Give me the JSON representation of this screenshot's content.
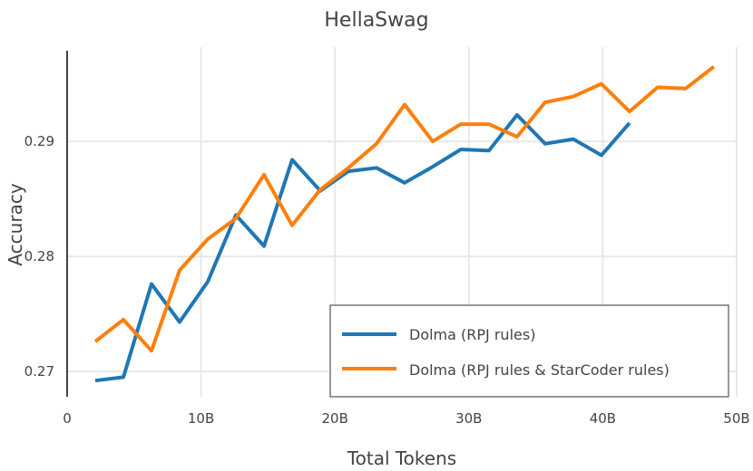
{
  "chart_data": {
    "type": "line",
    "title": "HellaSwag",
    "xlabel": "Total Tokens",
    "ylabel": "Accuracy",
    "xlim": [
      0,
      50
    ],
    "ylim": [
      0.2678,
      0.2982
    ],
    "x_ticks": [
      {
        "value": 0,
        "label": "0"
      },
      {
        "value": 10,
        "label": "10B"
      },
      {
        "value": 20,
        "label": "20B"
      },
      {
        "value": 30,
        "label": "30B"
      },
      {
        "value": 40,
        "label": "40B"
      },
      {
        "value": 50,
        "label": "50B"
      }
    ],
    "y_ticks": [
      {
        "value": 0.27,
        "label": "0.27"
      },
      {
        "value": 0.28,
        "label": "0.28"
      },
      {
        "value": 0.29,
        "label": "0.29"
      }
    ],
    "grid": true,
    "legend_position": "bottom-right",
    "series": [
      {
        "name": "Dolma (RPJ rules)",
        "color": "#1f77b4",
        "x": [
          2.1,
          4.2,
          6.3,
          8.4,
          10.5,
          12.6,
          14.7,
          16.8,
          18.9,
          21.0,
          23.1,
          25.2,
          27.3,
          29.4,
          31.5,
          33.6,
          35.7,
          37.8,
          39.9,
          42.0
        ],
        "y": [
          0.2692,
          0.2695,
          0.2776,
          0.2743,
          0.2778,
          0.2836,
          0.2809,
          0.2884,
          0.2857,
          0.2874,
          0.2877,
          0.2864,
          0.2878,
          0.2893,
          0.2892,
          0.2923,
          0.2898,
          0.2902,
          0.2888,
          0.2916
        ]
      },
      {
        "name": "Dolma (RPJ rules & StarCoder rules)",
        "color": "#ff7f0e",
        "x": [
          2.1,
          4.2,
          6.3,
          8.4,
          10.5,
          12.6,
          14.7,
          16.8,
          18.9,
          21.0,
          23.1,
          25.2,
          27.3,
          29.4,
          31.5,
          33.6,
          35.7,
          37.8,
          39.9,
          42.0,
          44.1,
          46.2,
          48.3
        ],
        "y": [
          0.2726,
          0.2745,
          0.2718,
          0.2788,
          0.2815,
          0.2833,
          0.2871,
          0.2827,
          0.2858,
          0.2877,
          0.2898,
          0.2932,
          0.29,
          0.2915,
          0.2915,
          0.2904,
          0.2934,
          0.2939,
          0.295,
          0.2926,
          0.2947,
          0.2946,
          0.2965
        ]
      }
    ]
  }
}
